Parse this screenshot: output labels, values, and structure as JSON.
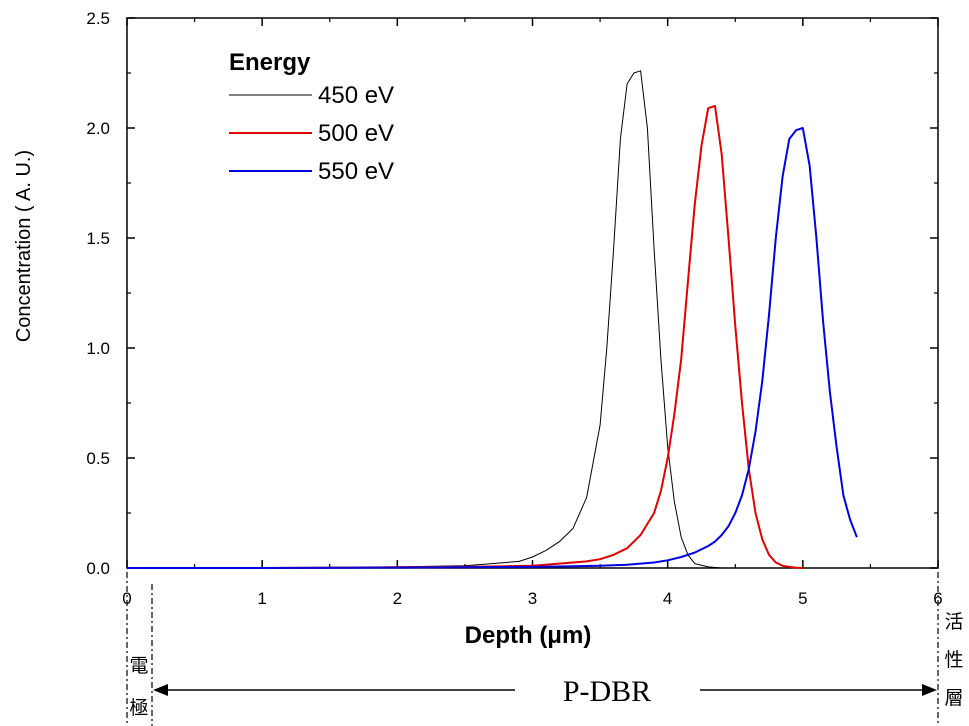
{
  "chart_data": {
    "type": "line",
    "title": "",
    "xlabel": "Depth (μm)",
    "ylabel": "Concentration ( A. U.)",
    "xlim": [
      0,
      6
    ],
    "ylim": [
      0,
      2.5
    ],
    "xticks": [
      0,
      1,
      2,
      3,
      4,
      5,
      6
    ],
    "xtick_labels": [
      "0",
      "1",
      "2",
      "3",
      "4",
      "5",
      "6"
    ],
    "yticks": [
      0,
      0.5,
      1.0,
      1.5,
      2.0,
      2.5
    ],
    "ytick_labels": [
      "0.0",
      "0.5",
      "1.0",
      "1.5",
      "2.0",
      "2.5"
    ],
    "grid": false,
    "legend": {
      "title": "Energy",
      "position": "top-left"
    },
    "series": [
      {
        "name": "450 eV",
        "color": "#000000",
        "x": [
          0,
          1,
          2,
          2.5,
          2.7,
          2.9,
          3.0,
          3.1,
          3.2,
          3.3,
          3.4,
          3.5,
          3.55,
          3.6,
          3.65,
          3.7,
          3.75,
          3.8,
          3.85,
          3.9,
          3.95,
          4.0,
          4.05,
          4.1,
          4.15,
          4.2,
          4.3,
          4.4
        ],
        "y": [
          0,
          0,
          0.005,
          0.01,
          0.02,
          0.03,
          0.05,
          0.08,
          0.12,
          0.18,
          0.32,
          0.65,
          1.0,
          1.45,
          1.95,
          2.2,
          2.25,
          2.26,
          2.0,
          1.45,
          0.95,
          0.55,
          0.3,
          0.14,
          0.06,
          0.02,
          0.005,
          0
        ]
      },
      {
        "name": "500 eV",
        "color": "#e00000",
        "x": [
          0,
          1,
          2,
          2.5,
          2.8,
          3.0,
          3.2,
          3.4,
          3.5,
          3.6,
          3.7,
          3.8,
          3.9,
          3.95,
          4.0,
          4.05,
          4.1,
          4.15,
          4.2,
          4.25,
          4.3,
          4.35,
          4.4,
          4.45,
          4.5,
          4.55,
          4.6,
          4.65,
          4.7,
          4.75,
          4.8,
          4.85,
          4.9,
          4.95,
          5.0
        ],
        "y": [
          0,
          0,
          0.003,
          0.005,
          0.008,
          0.01,
          0.02,
          0.03,
          0.04,
          0.06,
          0.09,
          0.15,
          0.25,
          0.35,
          0.5,
          0.7,
          0.95,
          1.3,
          1.65,
          1.92,
          2.09,
          2.1,
          1.88,
          1.5,
          1.1,
          0.75,
          0.45,
          0.25,
          0.13,
          0.06,
          0.025,
          0.01,
          0.005,
          0.002,
          0
        ]
      },
      {
        "name": "550 eV",
        "color": "#0000e0",
        "x": [
          0,
          1,
          2,
          2.5,
          3.0,
          3.3,
          3.5,
          3.7,
          3.8,
          3.9,
          4.0,
          4.1,
          4.2,
          4.3,
          4.35,
          4.4,
          4.45,
          4.5,
          4.55,
          4.6,
          4.65,
          4.7,
          4.75,
          4.8,
          4.85,
          4.9,
          4.95,
          5.0,
          5.05,
          5.1,
          5.15,
          5.2,
          5.25,
          5.3,
          5.35,
          5.4
        ],
        "y": [
          0,
          0,
          0.002,
          0.003,
          0.005,
          0.008,
          0.01,
          0.015,
          0.02,
          0.025,
          0.035,
          0.05,
          0.07,
          0.1,
          0.12,
          0.15,
          0.19,
          0.25,
          0.33,
          0.45,
          0.62,
          0.85,
          1.15,
          1.5,
          1.78,
          1.95,
          1.99,
          2.0,
          1.83,
          1.5,
          1.12,
          0.8,
          0.55,
          0.33,
          0.22,
          0.14
        ]
      }
    ],
    "region_labels": {
      "left_region": "電極",
      "right_region": "活性層",
      "span_label": "P-DBR"
    }
  }
}
